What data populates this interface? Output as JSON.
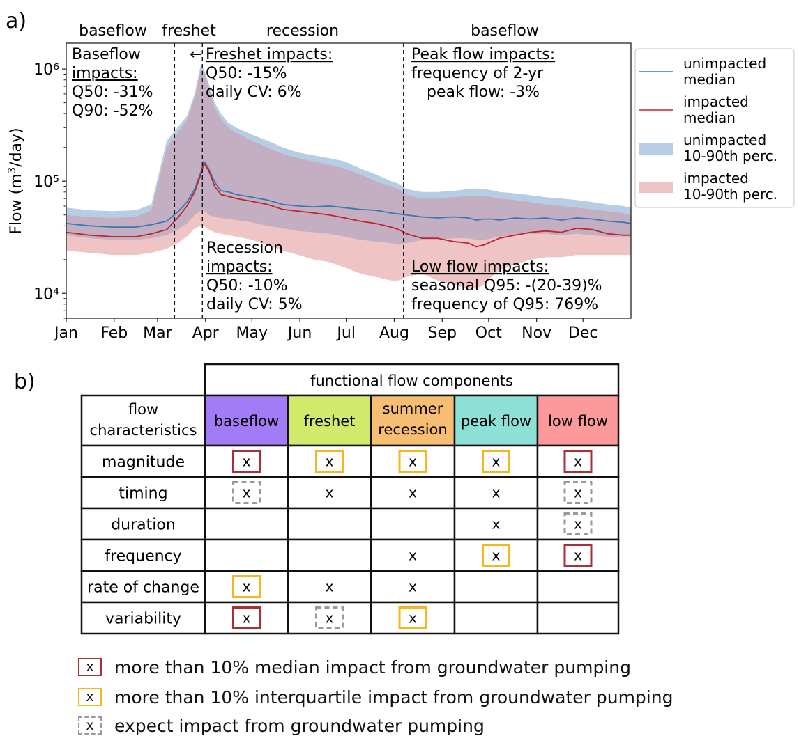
{
  "panel_a": {
    "label": "a)",
    "regions": [
      "baseflow",
      "freshet",
      "recession",
      "baseflow"
    ],
    "annotations": {
      "baseflow": [
        "Baseflow",
        "impacts:",
        "Q50: -31%",
        "Q90: -52%"
      ],
      "freshet": [
        "Freshet impacts:",
        "Q50: -15%",
        "daily CV: 6%"
      ],
      "recession": [
        "Recession",
        "impacts:",
        "Q50: -10%",
        "daily CV: 5%"
      ],
      "peak": [
        "Peak flow impacts:",
        "frequency of 2-yr",
        "peak flow: -3%"
      ],
      "low": [
        "Low flow impacts:",
        "seasonal Q95: -(20-39)%",
        "frequency of Q95: 769%"
      ]
    },
    "arrow_glyph": "←",
    "legend": [
      {
        "line1": "unimpacted",
        "line2": "median",
        "kind": "line",
        "color": "#3a78b5"
      },
      {
        "line1": "impacted",
        "line2": "median",
        "kind": "line",
        "color": "#c0262d"
      },
      {
        "line1": "unimpacted",
        "line2": "10-90th perc.",
        "kind": "band",
        "color": "#b7cde4"
      },
      {
        "line1": "impacted",
        "line2": "10-90th perc.",
        "kind": "band",
        "color": "#efc4c4"
      }
    ],
    "colors": {
      "unimpacted_line": "#3a78b5",
      "impacted_line": "#c0262d",
      "unimpacted_band": "#b7cde4",
      "impacted_band": "#efc4c4",
      "overlap_band": "#c4afc2"
    }
  },
  "chart_data": {
    "type": "line",
    "ylabel": "Flow (m³/day)",
    "yscale": "log",
    "ylim": [
      6000,
      1700000
    ],
    "yticks": [
      10000,
      100000,
      1000000
    ],
    "ytick_labels": [
      "10⁴",
      "10⁵",
      "10⁶"
    ],
    "xlim": [
      0,
      365
    ],
    "xticks": [
      0,
      31,
      59,
      90,
      120,
      151,
      181,
      212,
      243,
      273,
      304,
      334
    ],
    "xtick_labels": [
      "Jan",
      "Feb",
      "Mar",
      "Apr",
      "May",
      "Jun",
      "Jul",
      "Aug",
      "Sep",
      "Oct",
      "Nov",
      "Dec"
    ],
    "vlines_day": [
      70,
      88,
      218
    ],
    "x": [
      0,
      15,
      30,
      45,
      55,
      65,
      72,
      78,
      83,
      87,
      89,
      92,
      96,
      100,
      105,
      110,
      120,
      130,
      140,
      150,
      160,
      170,
      180,
      190,
      200,
      210,
      215,
      220,
      230,
      240,
      250,
      260,
      265,
      270,
      275,
      280,
      290,
      300,
      310,
      320,
      330,
      340,
      350,
      360,
      365
    ],
    "series": [
      {
        "name": "unimpacted median",
        "values": [
          42000,
          40000,
          39000,
          39000,
          41000,
          44000,
          53000,
          65000,
          85000,
          120000,
          150000,
          130000,
          98000,
          82000,
          80000,
          76000,
          72000,
          68000,
          62000,
          60000,
          59000,
          60000,
          58000,
          56000,
          55000,
          52000,
          51000,
          50000,
          48000,
          47000,
          48000,
          47000,
          45000,
          46000,
          46000,
          45000,
          47000,
          46000,
          47000,
          45000,
          47000,
          46000,
          44000,
          43000,
          42000
        ]
      },
      {
        "name": "impacted median",
        "values": [
          35000,
          33000,
          32000,
          32000,
          34000,
          37000,
          47000,
          60000,
          80000,
          115000,
          145000,
          125000,
          90000,
          76000,
          73000,
          70000,
          66000,
          62000,
          56000,
          54000,
          52000,
          50000,
          47000,
          44000,
          42000,
          39000,
          37000,
          34000,
          31000,
          31000,
          29000,
          28000,
          26000,
          27000,
          29000,
          31000,
          33000,
          35000,
          36000,
          35000,
          38000,
          37000,
          34000,
          33000,
          33000
        ]
      },
      {
        "name": "unimpacted 10-90th perc.",
        "lower": [
          33000,
          31000,
          30000,
          30000,
          31000,
          33000,
          37000,
          42000,
          50000,
          55000,
          55000,
          50000,
          48000,
          47000,
          46000,
          45000,
          43000,
          40000,
          38000,
          36000,
          35000,
          34000,
          32000,
          30000,
          29000,
          28000,
          27000,
          28000,
          30000,
          30000,
          31000,
          31000,
          30000,
          30000,
          31000,
          32000,
          33000,
          34000,
          34000,
          33000,
          34000,
          33000,
          32000,
          32000,
          32000
        ],
        "upper": [
          58000,
          55000,
          54000,
          55000,
          62000,
          230000,
          300000,
          380000,
          600000,
          1100000,
          1000000,
          750000,
          500000,
          400000,
          330000,
          300000,
          260000,
          230000,
          200000,
          180000,
          170000,
          160000,
          150000,
          130000,
          115000,
          100000,
          95000,
          85000,
          80000,
          80000,
          82000,
          85000,
          85000,
          85000,
          83000,
          80000,
          78000,
          75000,
          72000,
          70000,
          68000,
          65000,
          62000,
          60000,
          58000
        ]
      },
      {
        "name": "impacted 10-90th perc.",
        "lower": [
          24000,
          23000,
          22000,
          22000,
          23000,
          25000,
          28000,
          32000,
          38000,
          40000,
          40000,
          37000,
          35000,
          34000,
          33000,
          32000,
          30000,
          27000,
          24000,
          22000,
          20000,
          19000,
          17000,
          15000,
          14000,
          13000,
          13000,
          14000,
          15000,
          13000,
          12000,
          11000,
          11000,
          12000,
          14000,
          16000,
          18000,
          20000,
          21000,
          21000,
          22000,
          22000,
          22000,
          22000,
          22000
        ],
        "upper": [
          50000,
          48000,
          47000,
          48000,
          55000,
          200000,
          270000,
          350000,
          550000,
          1000000,
          950000,
          700000,
          450000,
          360000,
          300000,
          270000,
          230000,
          200000,
          175000,
          160000,
          150000,
          140000,
          130000,
          115000,
          100000,
          90000,
          85000,
          75000,
          70000,
          70000,
          72000,
          74000,
          74000,
          74000,
          72000,
          70000,
          68000,
          65000,
          62000,
          60000,
          58000,
          56000,
          54000,
          52000,
          50000
        ]
      }
    ]
  },
  "panel_b": {
    "label": "b)",
    "group_header": "functional flow components",
    "corner_header": [
      "flow",
      "characteristics"
    ],
    "columns": [
      {
        "lines": [
          "baseflow"
        ],
        "color": "#a27cf6"
      },
      {
        "lines": [
          "freshet"
        ],
        "color": "#d2ea6c"
      },
      {
        "lines": [
          "summer",
          "recession"
        ],
        "color": "#f6bd73"
      },
      {
        "lines": [
          "peak flow"
        ],
        "color": "#8ce0d6"
      },
      {
        "lines": [
          "low flow"
        ],
        "color": "#fc999a"
      }
    ],
    "rows": [
      {
        "label": "magnitude",
        "cells": [
          "red",
          "yellow",
          "yellow",
          "yellow",
          "red"
        ]
      },
      {
        "label": "timing",
        "cells": [
          "dashed",
          "plain",
          "plain",
          "plain",
          "dashed"
        ]
      },
      {
        "label": "duration",
        "cells": [
          "",
          "",
          "",
          "plain",
          "dashed"
        ]
      },
      {
        "label": "frequency",
        "cells": [
          "",
          "",
          "plain",
          "yellow",
          "red"
        ]
      },
      {
        "label": "rate of change",
        "cells": [
          "yellow",
          "plain",
          "plain",
          "",
          ""
        ]
      },
      {
        "label": "variability",
        "cells": [
          "red",
          "dashed",
          "yellow",
          "",
          ""
        ]
      }
    ],
    "mark": "x",
    "box_colors": {
      "red": "#a93036",
      "yellow": "#f2b81d",
      "dashed": "#999999"
    },
    "legend": [
      {
        "style": "red",
        "text": "more than 10% median impact from groundwater pumping"
      },
      {
        "style": "yellow",
        "text": "more than 10% interquartile impact from groundwater pumping"
      },
      {
        "style": "dashed",
        "text": "expect impact from groundwater pumping"
      }
    ]
  }
}
